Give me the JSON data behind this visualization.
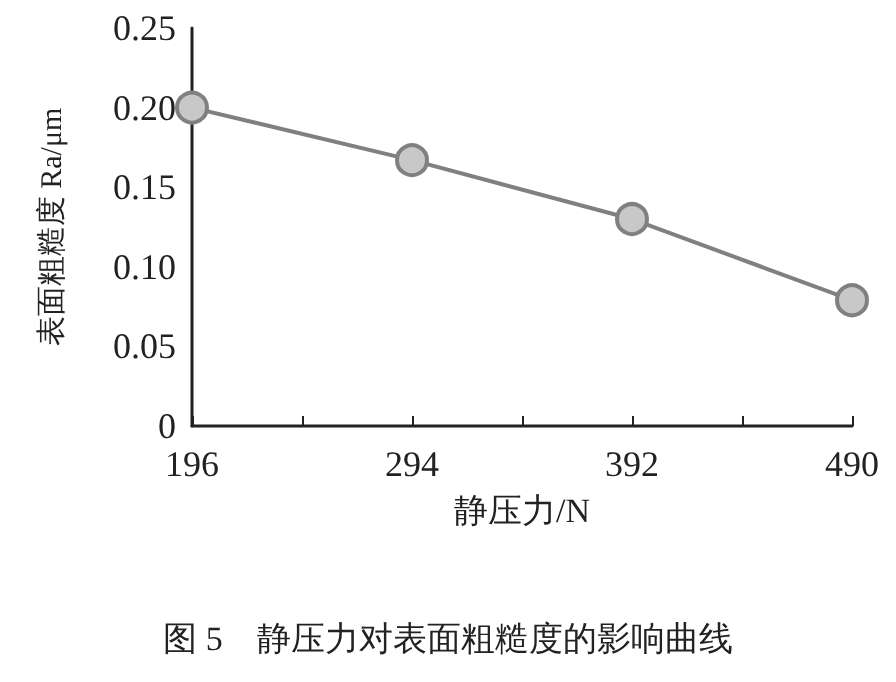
{
  "chart_data": {
    "type": "line",
    "xlabel": "静压力/N",
    "ylabel": "表面粗糙度 Ra/μm",
    "annotations": [
      "图 5　静压力对表面粗糙度的影响曲线"
    ],
    "x": [
      196,
      294,
      392,
      490
    ],
    "series": [
      {
        "color": "#808080",
        "values": [
          0.2,
          0.167,
          0.13,
          0.079
        ]
      }
    ],
    "xlim": [
      196,
      490
    ],
    "xticks": [
      196,
      {
        "value": 245,
        "label": null
      },
      294,
      {
        "value": 343,
        "label": null
      },
      392,
      {
        "value": 441,
        "label": null
      },
      490
    ],
    "ylim": [
      0,
      0.25
    ],
    "yticks": [
      {
        "value": 0,
        "label": "0"
      },
      {
        "value": 0.05,
        "label": "0.05"
      },
      {
        "value": 0.1,
        "label": "0.10"
      },
      {
        "value": 0.15,
        "label": "0.15"
      },
      {
        "value": 0.2,
        "label": "0.20"
      },
      {
        "value": 0.25,
        "label": "0.25"
      }
    ],
    "grid": false,
    "marker": "circle",
    "line_style": "solid"
  }
}
